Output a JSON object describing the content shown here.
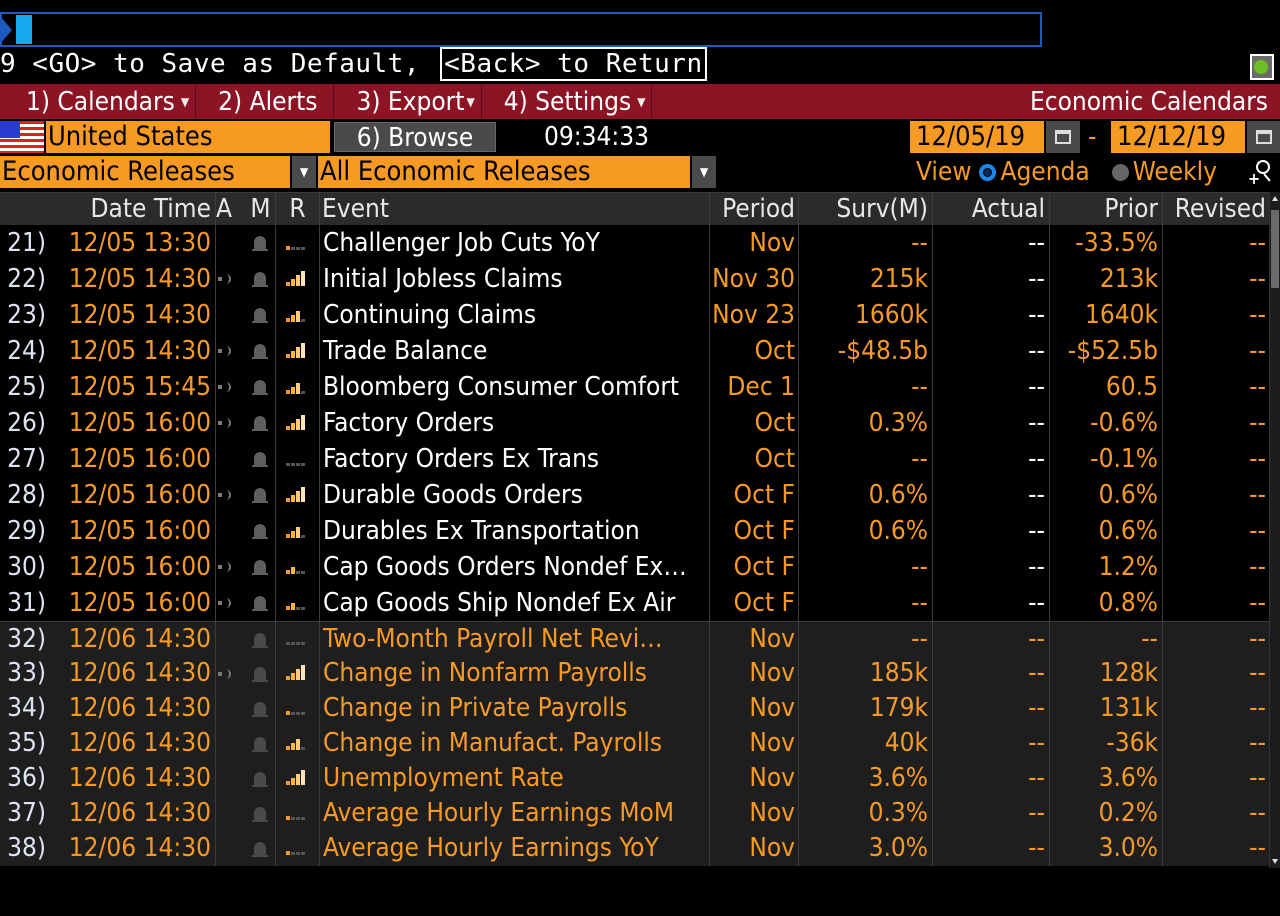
{
  "command_line": {
    "value": ""
  },
  "hint": {
    "prefix": "9 <GO> to Save as Default,",
    "back": "<Back> to Return"
  },
  "menu": {
    "items": [
      {
        "label": "1) Calendars",
        "has_dropdown": true
      },
      {
        "label": "2) Alerts",
        "has_dropdown": false
      },
      {
        "label": "3) Export",
        "has_dropdown": true
      },
      {
        "label": "4) Settings",
        "has_dropdown": true
      }
    ],
    "title": "Economic Calendars"
  },
  "filters": {
    "country": "United States",
    "browse_label": "6) Browse",
    "clock": "09:34:33",
    "start_date": "12/05/19",
    "end_date": "12/12/19",
    "date_separator": "-",
    "category": "Economic Releases",
    "subcategory": "All Economic Releases",
    "view_label": "View",
    "view_options": [
      "Agenda",
      "Weekly"
    ],
    "view_selected": "Agenda"
  },
  "table": {
    "headers": {
      "datetime": "Date Time",
      "a": "A",
      "m": "M",
      "r": "R",
      "event": "Event",
      "period": "Period",
      "survey": "Surv(M)",
      "actual": "Actual",
      "prior": "Prior",
      "revised": "Revised"
    },
    "rows": [
      {
        "num": "21)",
        "datetime": "12/05 13:30",
        "speaker": false,
        "relevance": 1,
        "event": "Challenger Job Cuts YoY",
        "period": "Nov",
        "survey": "--",
        "actual": "--",
        "prior": "-33.5%",
        "revised": "--",
        "future": false
      },
      {
        "num": "22)",
        "datetime": "12/05 14:30",
        "speaker": true,
        "relevance": 4,
        "event": "Initial Jobless Claims",
        "period": "Nov 30",
        "survey": "215k",
        "actual": "--",
        "prior": "213k",
        "revised": "--",
        "future": false
      },
      {
        "num": "23)",
        "datetime": "12/05 14:30",
        "speaker": false,
        "relevance": 3,
        "event": "Continuing Claims",
        "period": "Nov 23",
        "survey": "1660k",
        "actual": "--",
        "prior": "1640k",
        "revised": "--",
        "future": false
      },
      {
        "num": "24)",
        "datetime": "12/05 14:30",
        "speaker": true,
        "relevance": 4,
        "event": "Trade Balance",
        "period": "Oct",
        "survey": "-$48.5b",
        "actual": "--",
        "prior": "-$52.5b",
        "revised": "--",
        "future": false
      },
      {
        "num": "25)",
        "datetime": "12/05 15:45",
        "speaker": true,
        "relevance": 3,
        "event": "Bloomberg Consumer Comfort",
        "period": "Dec 1",
        "survey": "--",
        "actual": "--",
        "prior": "60.5",
        "revised": "--",
        "future": false
      },
      {
        "num": "26)",
        "datetime": "12/05 16:00",
        "speaker": true,
        "relevance": 4,
        "event": "Factory Orders",
        "period": "Oct",
        "survey": "0.3%",
        "actual": "--",
        "prior": "-0.6%",
        "revised": "--",
        "future": false
      },
      {
        "num": "27)",
        "datetime": "12/05 16:00",
        "speaker": false,
        "relevance": 0,
        "event": "Factory Orders Ex Trans",
        "period": "Oct",
        "survey": "--",
        "actual": "--",
        "prior": "-0.1%",
        "revised": "--",
        "future": false
      },
      {
        "num": "28)",
        "datetime": "12/05 16:00",
        "speaker": true,
        "relevance": 4,
        "event": "Durable Goods Orders",
        "period": "Oct F",
        "survey": "0.6%",
        "actual": "--",
        "prior": "0.6%",
        "revised": "--",
        "future": false
      },
      {
        "num": "29)",
        "datetime": "12/05 16:00",
        "speaker": false,
        "relevance": 3,
        "event": "Durables Ex Transportation",
        "period": "Oct F",
        "survey": "0.6%",
        "actual": "--",
        "prior": "0.6%",
        "revised": "--",
        "future": false
      },
      {
        "num": "30)",
        "datetime": "12/05 16:00",
        "speaker": true,
        "relevance": 2,
        "event": "Cap Goods Orders Nondef Ex…",
        "period": "Oct F",
        "survey": "--",
        "actual": "--",
        "prior": "1.2%",
        "revised": "--",
        "future": false
      },
      {
        "num": "31)",
        "datetime": "12/05 16:00",
        "speaker": true,
        "relevance": 2,
        "event": "Cap Goods Ship Nondef Ex Air",
        "period": "Oct F",
        "survey": "--",
        "actual": "--",
        "prior": "0.8%",
        "revised": "--",
        "future": false
      },
      {
        "num": "32)",
        "datetime": "12/06 14:30",
        "speaker": false,
        "relevance": 0,
        "event": "Two-Month Payroll Net Revi…",
        "period": "Nov",
        "survey": "--",
        "actual": "--",
        "prior": "--",
        "revised": "--",
        "future": true
      },
      {
        "num": "33)",
        "datetime": "12/06 14:30",
        "speaker": true,
        "relevance": 4,
        "event": "Change in Nonfarm Payrolls",
        "period": "Nov",
        "survey": "185k",
        "actual": "--",
        "prior": "128k",
        "revised": "--",
        "future": true
      },
      {
        "num": "34)",
        "datetime": "12/06 14:30",
        "speaker": false,
        "relevance": 1,
        "event": "Change in Private Payrolls",
        "period": "Nov",
        "survey": "179k",
        "actual": "--",
        "prior": "131k",
        "revised": "--",
        "future": true
      },
      {
        "num": "35)",
        "datetime": "12/06 14:30",
        "speaker": false,
        "relevance": 3,
        "event": "Change in Manufact. Payrolls",
        "period": "Nov",
        "survey": "40k",
        "actual": "--",
        "prior": "-36k",
        "revised": "--",
        "future": true
      },
      {
        "num": "36)",
        "datetime": "12/06 14:30",
        "speaker": false,
        "relevance": 4,
        "event": "Unemployment Rate",
        "period": "Nov",
        "survey": "3.6%",
        "actual": "--",
        "prior": "3.6%",
        "revised": "--",
        "future": true
      },
      {
        "num": "37)",
        "datetime": "12/06 14:30",
        "speaker": false,
        "relevance": 1,
        "event": "Average Hourly Earnings MoM",
        "period": "Nov",
        "survey": "0.3%",
        "actual": "--",
        "prior": "0.2%",
        "revised": "--",
        "future": true
      },
      {
        "num": "38)",
        "datetime": "12/06 14:30",
        "speaker": false,
        "relevance": 1,
        "event": "Average Hourly Earnings YoY",
        "period": "Nov",
        "survey": "3.0%",
        "actual": "--",
        "prior": "3.0%",
        "revised": "--",
        "future": true
      }
    ]
  },
  "colors": {
    "accent_orange": "#f79a23",
    "menu_red": "#8c1424",
    "command_blue": "#1e5bb5",
    "radio_blue": "#1e86e8"
  }
}
